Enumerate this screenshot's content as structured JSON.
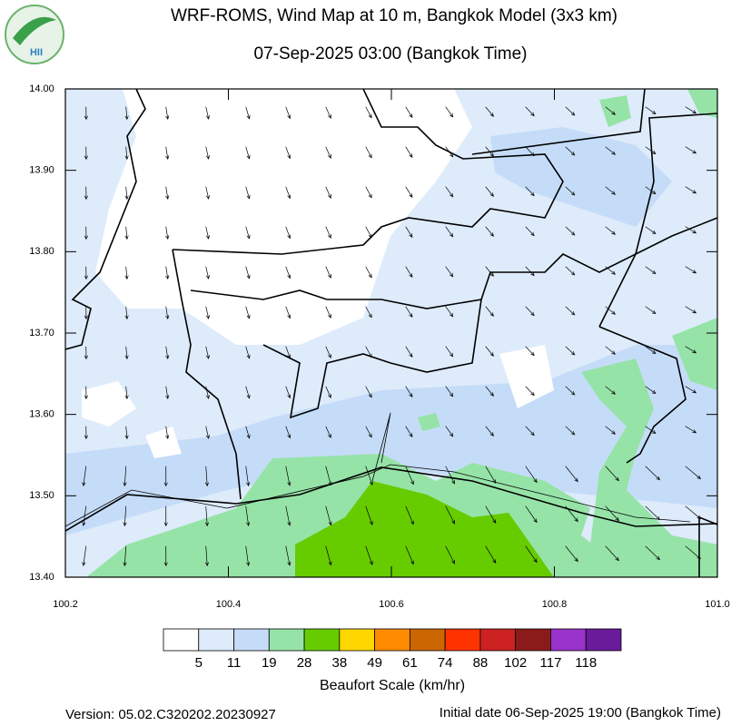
{
  "chart_data": {
    "type": "map",
    "title": "WRF-ROMS, Wind Map at 10 m, Bangkok Model (3x3 km)",
    "subtitle": "07-Sep-2025 03:00 (Bangkok Time)",
    "xlim": [
      100.2,
      101
    ],
    "xticks": [
      100.2,
      100.4,
      100.6,
      100.8,
      {
        "value": 101,
        "label": "101.0"
      }
    ],
    "ylim": [
      13.4,
      14
    ],
    "yticks": [
      {
        "value": 13.4,
        "label": "13.40"
      },
      {
        "value": 13.5,
        "label": "13.50"
      },
      {
        "value": 13.6,
        "label": "13.60"
      },
      {
        "value": 13.7,
        "label": "13.70"
      },
      {
        "value": 13.8,
        "label": "13.80"
      },
      {
        "value": 13.9,
        "label": "13.90"
      },
      {
        "value": 14,
        "label": "14.00"
      }
    ],
    "colorbar": {
      "title": "Beaufort Scale (km/hr)",
      "levels": [
        5,
        11,
        19,
        28,
        38,
        49,
        61,
        74,
        88,
        102,
        117,
        118
      ],
      "colors": [
        "#ffffff",
        "#deebfb",
        "#c5dcf8",
        "#96e3a8",
        "#66cc00",
        "#ffd700",
        "#ff8c00",
        "#cc6600",
        "#ff3300",
        "#cc2222",
        "#8b1a1a",
        "#9933cc",
        "#6a1b9a"
      ]
    }
  },
  "logo": "HII",
  "footer": {
    "version": "Version: 05.02.C320202.20230927",
    "initial_date": "Initial date 06-Sep-2025 19:00 (Bangkok Time)"
  }
}
